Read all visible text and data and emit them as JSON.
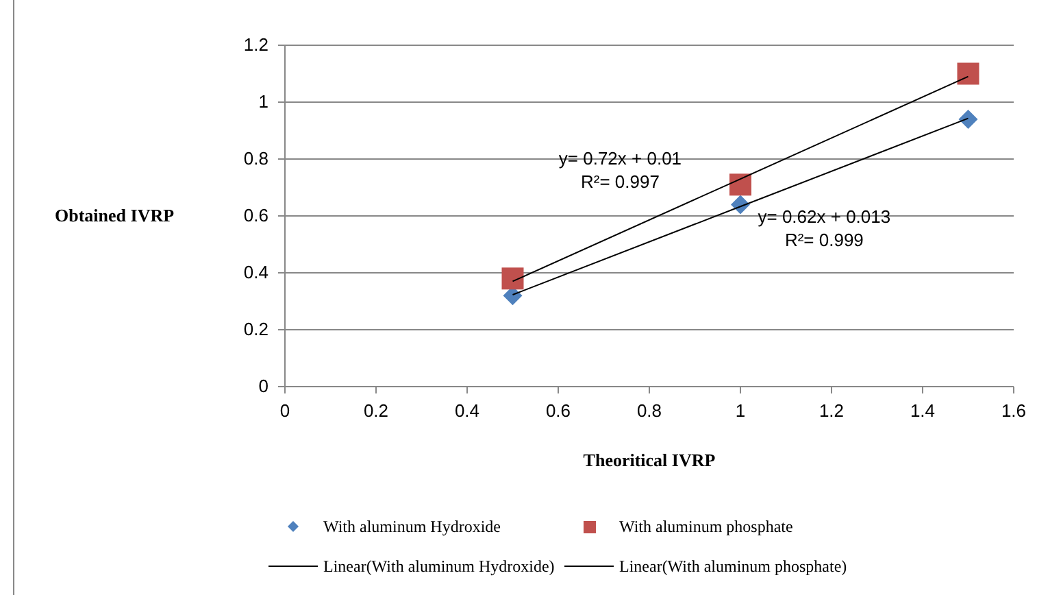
{
  "chart_data": {
    "type": "scatter",
    "xlabel": "Theoritical IVRP",
    "ylabel": "Obtained IVRP",
    "x": [
      0.5,
      1,
      1.5
    ],
    "xlim": [
      0,
      1.6
    ],
    "xticks": [
      0,
      0.2,
      0.4,
      0.6,
      0.8,
      1,
      1.2,
      1.4,
      1.6
    ],
    "ylim": [
      0,
      1.2
    ],
    "yticks": [
      0,
      0.2,
      0.4,
      0.6,
      0.8,
      1,
      1.2
    ],
    "grid": "y",
    "legend": "bottom",
    "series": [
      {
        "name": "With aluminum Hydroxide",
        "color": "#4f81bd",
        "values": [
          0.32,
          0.64,
          0.94
        ],
        "marker": "diamond"
      },
      {
        "name": "With aluminum phosphate",
        "color": "#c0504d",
        "values": [
          0.38,
          0.71,
          1.1
        ],
        "marker": "square"
      },
      {
        "name": "Linear(With aluminum Hydroxide)",
        "type": "line",
        "color": "#000000",
        "values": [
          0.323,
          0.633,
          0.943
        ],
        "marker": "none"
      },
      {
        "name": "Linear(With aluminum phosphate)",
        "type": "line",
        "color": "#000000",
        "values": [
          0.37,
          0.73,
          1.09
        ],
        "marker": "none"
      }
    ],
    "annotations": [
      "y= 0.72x + 0.01\nR²= 0.997",
      "y= 0.62x + 0.013\nR²= 0.999"
    ]
  }
}
